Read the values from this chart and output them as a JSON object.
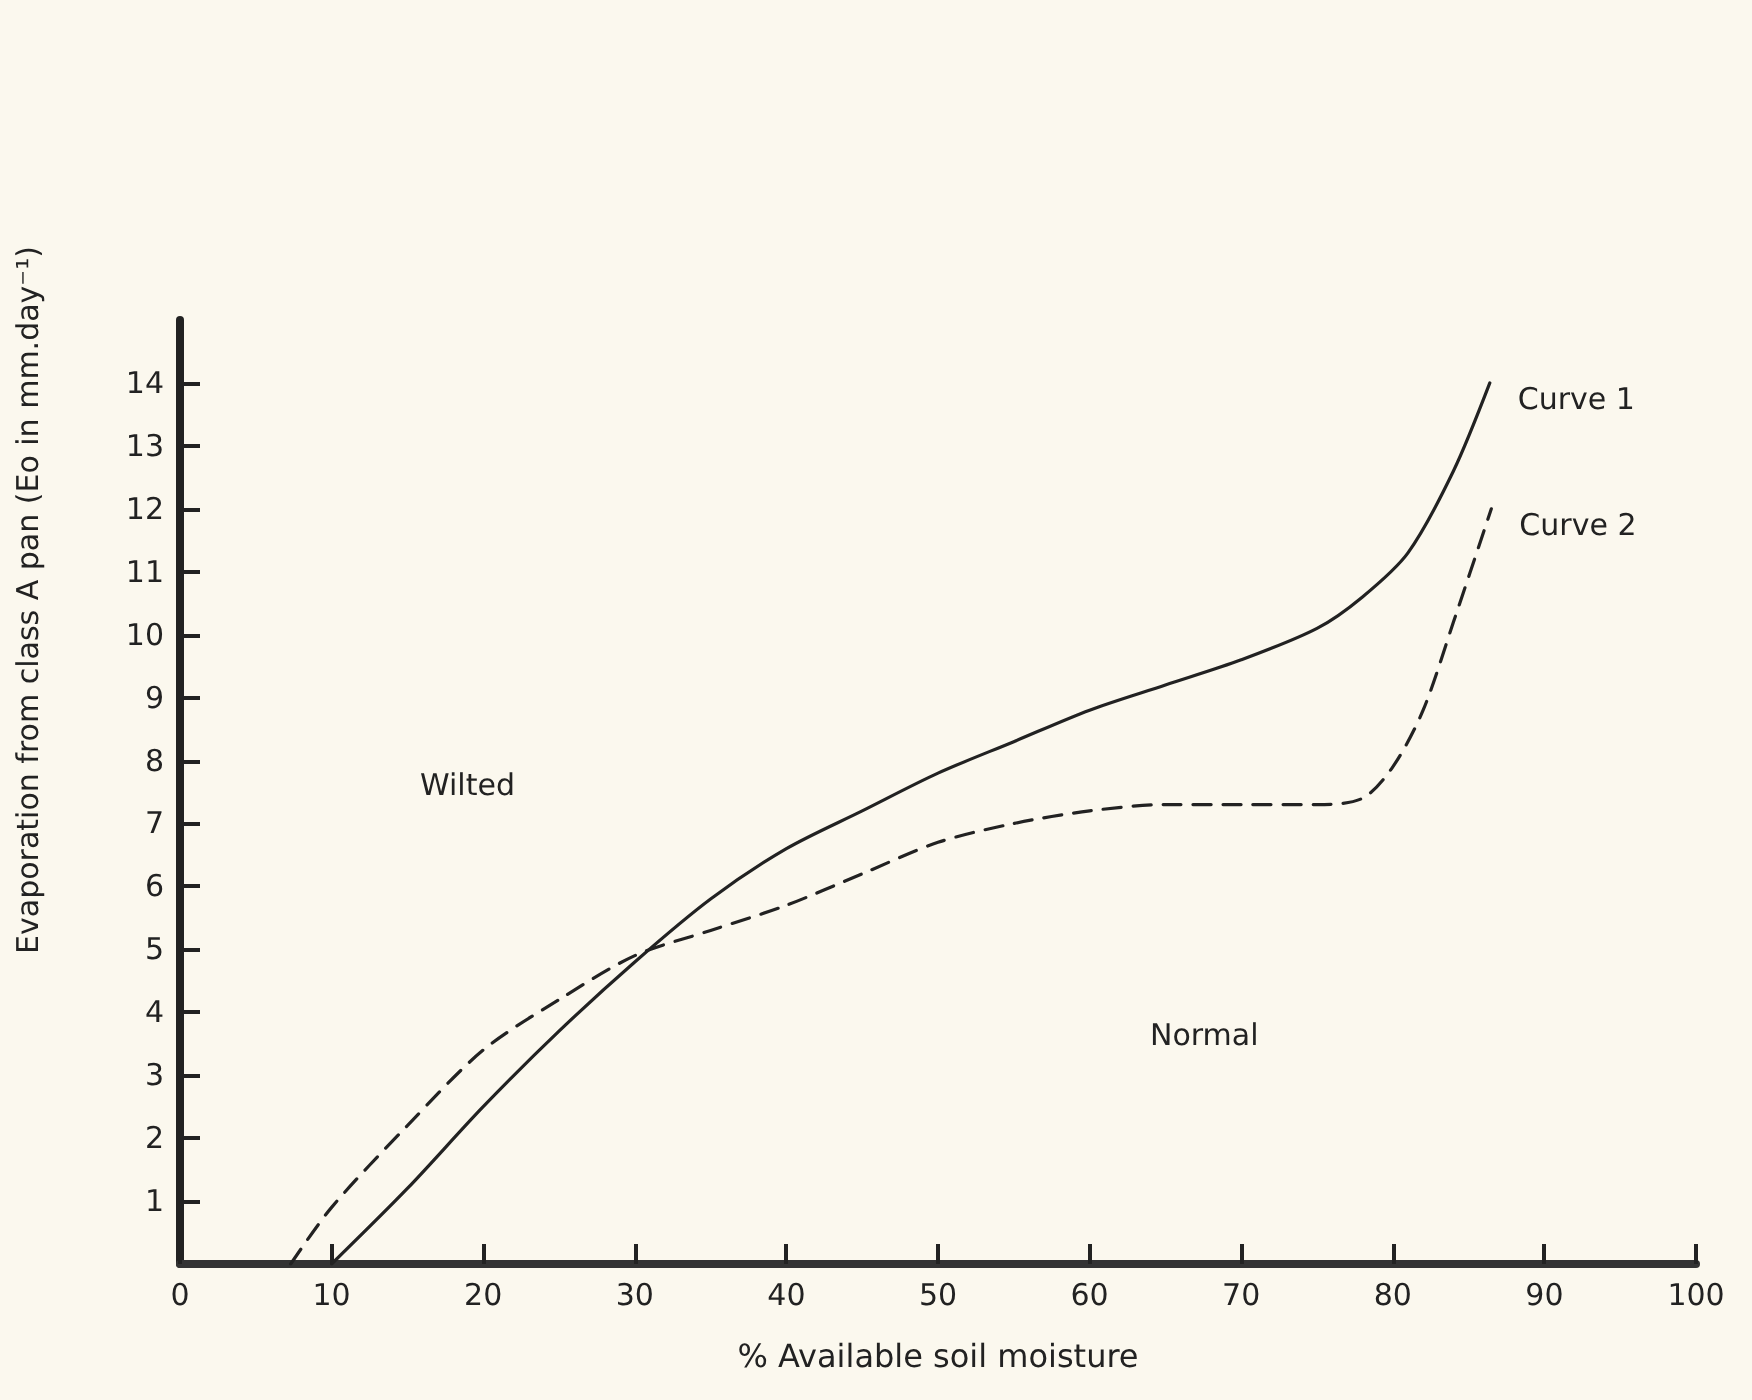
{
  "chart_data": {
    "type": "line",
    "xlabel": "% Available soil moisture",
    "ylabel": "Evaporation from class A pan (Eo in mm.day⁻¹)",
    "xlim": [
      0,
      100
    ],
    "xticks": [
      0,
      10,
      20,
      30,
      40,
      50,
      60,
      70,
      80,
      90,
      100
    ],
    "ylim": [
      0,
      15
    ],
    "yticks": [
      1,
      2,
      3,
      4,
      5,
      6,
      7,
      8,
      9,
      10,
      11,
      12,
      13,
      14
    ],
    "grid": false,
    "legend": false,
    "marker": "none",
    "series": [
      {
        "name": "Curve 1",
        "color": "#222222",
        "line_style": "solid",
        "x": [
          10,
          15,
          20,
          25,
          30,
          35,
          40,
          45,
          50,
          55,
          60,
          65,
          70,
          75,
          78,
          81,
          84,
          86.4
        ],
        "values": [
          0,
          1.2,
          2.5,
          3.7,
          4.8,
          5.8,
          6.6,
          7.2,
          7.8,
          8.3,
          8.8,
          9.2,
          9.6,
          10.1,
          10.6,
          11.3,
          12.6,
          14
        ]
      },
      {
        "name": "Curve 2",
        "color": "#222222",
        "line_style": "dashed",
        "x": [
          7.3,
          10,
          15,
          20,
          25,
          30,
          35,
          40,
          45,
          50,
          55,
          60,
          65,
          70,
          75,
          78,
          80,
          82,
          84,
          86.5
        ],
        "values": [
          0,
          0.9,
          2.2,
          3.4,
          4.2,
          4.9,
          5.3,
          5.7,
          6.2,
          6.7,
          7.0,
          7.2,
          7.3,
          7.3,
          7.3,
          7.4,
          7.9,
          8.8,
          10.2,
          12
        ]
      }
    ],
    "annotations": [
      "Wilted",
      "Normal"
    ]
  }
}
